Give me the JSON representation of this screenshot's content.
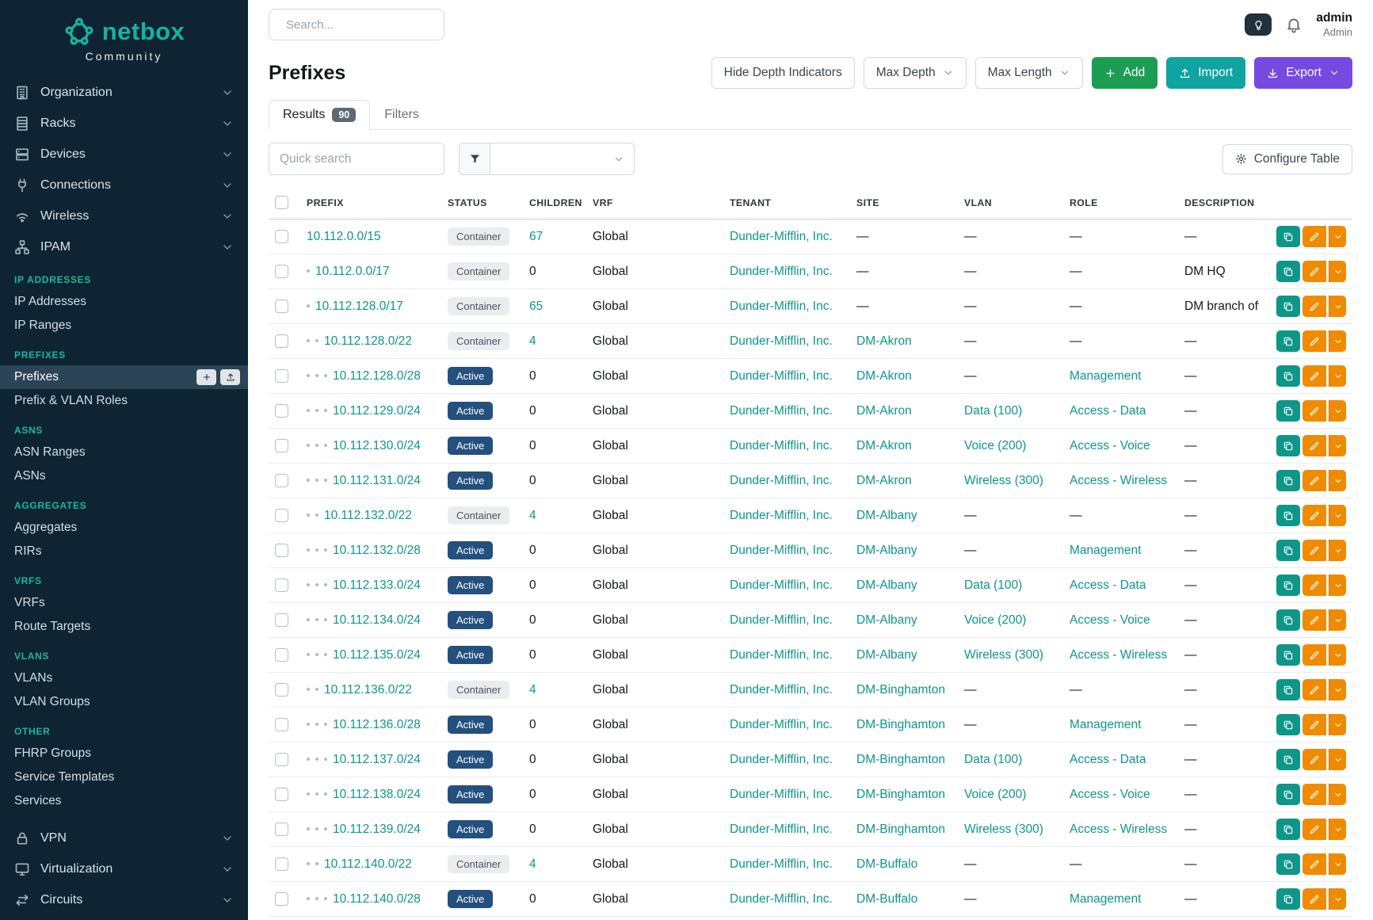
{
  "brand": {
    "name": "netbox",
    "subtitle": "Community"
  },
  "topbar": {
    "search_placeholder": "Search...",
    "user_name": "admin",
    "user_role": "Admin"
  },
  "sidebar": {
    "menu": [
      {
        "label": "Organization",
        "icon": "building-icon"
      },
      {
        "label": "Racks",
        "icon": "rack-icon"
      },
      {
        "label": "Devices",
        "icon": "server-icon"
      },
      {
        "label": "Connections",
        "icon": "connections-icon"
      },
      {
        "label": "Wireless",
        "icon": "wifi-icon"
      },
      {
        "label": "IPAM",
        "icon": "network-icon"
      }
    ],
    "ipam_groups": [
      {
        "header": "IP ADDRESSES",
        "items": [
          {
            "label": "IP Addresses"
          },
          {
            "label": "IP Ranges"
          }
        ]
      },
      {
        "header": "PREFIXES",
        "items": [
          {
            "label": "Prefixes",
            "active": true
          },
          {
            "label": "Prefix & VLAN Roles"
          }
        ]
      },
      {
        "header": "ASNS",
        "items": [
          {
            "label": "ASN Ranges"
          },
          {
            "label": "ASNs"
          }
        ]
      },
      {
        "header": "AGGREGATES",
        "items": [
          {
            "label": "Aggregates"
          },
          {
            "label": "RIRs"
          }
        ]
      },
      {
        "header": "VRFS",
        "items": [
          {
            "label": "VRFs"
          },
          {
            "label": "Route Targets"
          }
        ]
      },
      {
        "header": "VLANS",
        "items": [
          {
            "label": "VLANs"
          },
          {
            "label": "VLAN Groups"
          }
        ]
      },
      {
        "header": "OTHER",
        "items": [
          {
            "label": "FHRP Groups"
          },
          {
            "label": "Service Templates"
          },
          {
            "label": "Services"
          }
        ]
      }
    ],
    "menu_bottom": [
      {
        "label": "VPN",
        "icon": "lock-icon"
      },
      {
        "label": "Virtualization",
        "icon": "monitor-icon"
      },
      {
        "label": "Circuits",
        "icon": "circuits-icon"
      }
    ]
  },
  "page": {
    "title": "Prefixes",
    "buttons": {
      "hide_depth": "Hide Depth Indicators",
      "max_depth": "Max Depth",
      "max_length": "Max Length",
      "add": "Add",
      "import": "Import",
      "export": "Export",
      "configure_table": "Configure Table"
    },
    "tabs": [
      {
        "label": "Results",
        "badge": "90",
        "active": true
      },
      {
        "label": "Filters",
        "active": false
      }
    ],
    "quick_search_placeholder": "Quick search"
  },
  "table": {
    "columns": [
      "PREFIX",
      "STATUS",
      "CHILDREN",
      "VRF",
      "TENANT",
      "SITE",
      "VLAN",
      "ROLE",
      "DESCRIPTION"
    ],
    "rows": [
      {
        "prefix": "10.112.0.0/15",
        "depth": 0,
        "status": "Container",
        "children": "67",
        "vrf": "Global",
        "tenant": "Dunder-Mifflin, Inc.",
        "site": "—",
        "vlan": "—",
        "role": "—",
        "description": "—"
      },
      {
        "prefix": "10.112.0.0/17",
        "depth": 1,
        "status": "Container",
        "children": "0",
        "vrf": "Global",
        "tenant": "Dunder-Mifflin, Inc.",
        "site": "—",
        "vlan": "—",
        "role": "—",
        "description": "DM HQ"
      },
      {
        "prefix": "10.112.128.0/17",
        "depth": 1,
        "status": "Container",
        "children": "65",
        "vrf": "Global",
        "tenant": "Dunder-Mifflin, Inc.",
        "site": "—",
        "vlan": "—",
        "role": "—",
        "description": "DM branch offices"
      },
      {
        "prefix": "10.112.128.0/22",
        "depth": 2,
        "status": "Container",
        "children": "4",
        "vrf": "Global",
        "tenant": "Dunder-Mifflin, Inc.",
        "site": "DM-Akron",
        "vlan": "—",
        "role": "—",
        "description": "—"
      },
      {
        "prefix": "10.112.128.0/28",
        "depth": 3,
        "status": "Active",
        "children": "0",
        "vrf": "Global",
        "tenant": "Dunder-Mifflin, Inc.",
        "site": "DM-Akron",
        "vlan": "—",
        "role": "Management",
        "description": "—"
      },
      {
        "prefix": "10.112.129.0/24",
        "depth": 3,
        "status": "Active",
        "children": "0",
        "vrf": "Global",
        "tenant": "Dunder-Mifflin, Inc.",
        "site": "DM-Akron",
        "vlan": "Data (100)",
        "role": "Access - Data",
        "description": "—"
      },
      {
        "prefix": "10.112.130.0/24",
        "depth": 3,
        "status": "Active",
        "children": "0",
        "vrf": "Global",
        "tenant": "Dunder-Mifflin, Inc.",
        "site": "DM-Akron",
        "vlan": "Voice (200)",
        "role": "Access - Voice",
        "description": "—"
      },
      {
        "prefix": "10.112.131.0/24",
        "depth": 3,
        "status": "Active",
        "children": "0",
        "vrf": "Global",
        "tenant": "Dunder-Mifflin, Inc.",
        "site": "DM-Akron",
        "vlan": "Wireless (300)",
        "role": "Access - Wireless",
        "description": "—"
      },
      {
        "prefix": "10.112.132.0/22",
        "depth": 2,
        "status": "Container",
        "children": "4",
        "vrf": "Global",
        "tenant": "Dunder-Mifflin, Inc.",
        "site": "DM-Albany",
        "vlan": "—",
        "role": "—",
        "description": "—"
      },
      {
        "prefix": "10.112.132.0/28",
        "depth": 3,
        "status": "Active",
        "children": "0",
        "vrf": "Global",
        "tenant": "Dunder-Mifflin, Inc.",
        "site": "DM-Albany",
        "vlan": "—",
        "role": "Management",
        "description": "—"
      },
      {
        "prefix": "10.112.133.0/24",
        "depth": 3,
        "status": "Active",
        "children": "0",
        "vrf": "Global",
        "tenant": "Dunder-Mifflin, Inc.",
        "site": "DM-Albany",
        "vlan": "Data (100)",
        "role": "Access - Data",
        "description": "—"
      },
      {
        "prefix": "10.112.134.0/24",
        "depth": 3,
        "status": "Active",
        "children": "0",
        "vrf": "Global",
        "tenant": "Dunder-Mifflin, Inc.",
        "site": "DM-Albany",
        "vlan": "Voice (200)",
        "role": "Access - Voice",
        "description": "—"
      },
      {
        "prefix": "10.112.135.0/24",
        "depth": 3,
        "status": "Active",
        "children": "0",
        "vrf": "Global",
        "tenant": "Dunder-Mifflin, Inc.",
        "site": "DM-Albany",
        "vlan": "Wireless (300)",
        "role": "Access - Wireless",
        "description": "—"
      },
      {
        "prefix": "10.112.136.0/22",
        "depth": 2,
        "status": "Container",
        "children": "4",
        "vrf": "Global",
        "tenant": "Dunder-Mifflin, Inc.",
        "site": "DM-Binghamton",
        "vlan": "—",
        "role": "—",
        "description": "—"
      },
      {
        "prefix": "10.112.136.0/28",
        "depth": 3,
        "status": "Active",
        "children": "0",
        "vrf": "Global",
        "tenant": "Dunder-Mifflin, Inc.",
        "site": "DM-Binghamton",
        "vlan": "—",
        "role": "Management",
        "description": "—"
      },
      {
        "prefix": "10.112.137.0/24",
        "depth": 3,
        "status": "Active",
        "children": "0",
        "vrf": "Global",
        "tenant": "Dunder-Mifflin, Inc.",
        "site": "DM-Binghamton",
        "vlan": "Data (100)",
        "role": "Access - Data",
        "description": "—"
      },
      {
        "prefix": "10.112.138.0/24",
        "depth": 3,
        "status": "Active",
        "children": "0",
        "vrf": "Global",
        "tenant": "Dunder-Mifflin, Inc.",
        "site": "DM-Binghamton",
        "vlan": "Voice (200)",
        "role": "Access - Voice",
        "description": "—"
      },
      {
        "prefix": "10.112.139.0/24",
        "depth": 3,
        "status": "Active",
        "children": "0",
        "vrf": "Global",
        "tenant": "Dunder-Mifflin, Inc.",
        "site": "DM-Binghamton",
        "vlan": "Wireless (300)",
        "role": "Access - Wireless",
        "description": "—"
      },
      {
        "prefix": "10.112.140.0/22",
        "depth": 2,
        "status": "Container",
        "children": "4",
        "vrf": "Global",
        "tenant": "Dunder-Mifflin, Inc.",
        "site": "DM-Buffalo",
        "vlan": "—",
        "role": "—",
        "description": "—"
      },
      {
        "prefix": "10.112.140.0/28",
        "depth": 3,
        "status": "Active",
        "children": "0",
        "vrf": "Global",
        "tenant": "Dunder-Mifflin, Inc.",
        "site": "DM-Buffalo",
        "vlan": "—",
        "role": "Management",
        "description": "—"
      }
    ]
  },
  "colors": {
    "accent_teal": "#0e9688",
    "sidebar_bg": "#0e2433",
    "sidebar_heading_teal": "#18b89e",
    "add_green": "#1d9d54",
    "import_teal": "#0fa3a1",
    "export_purple": "#7649e0",
    "edit_orange": "#f08b00",
    "active_badge_navy": "#23507e"
  }
}
